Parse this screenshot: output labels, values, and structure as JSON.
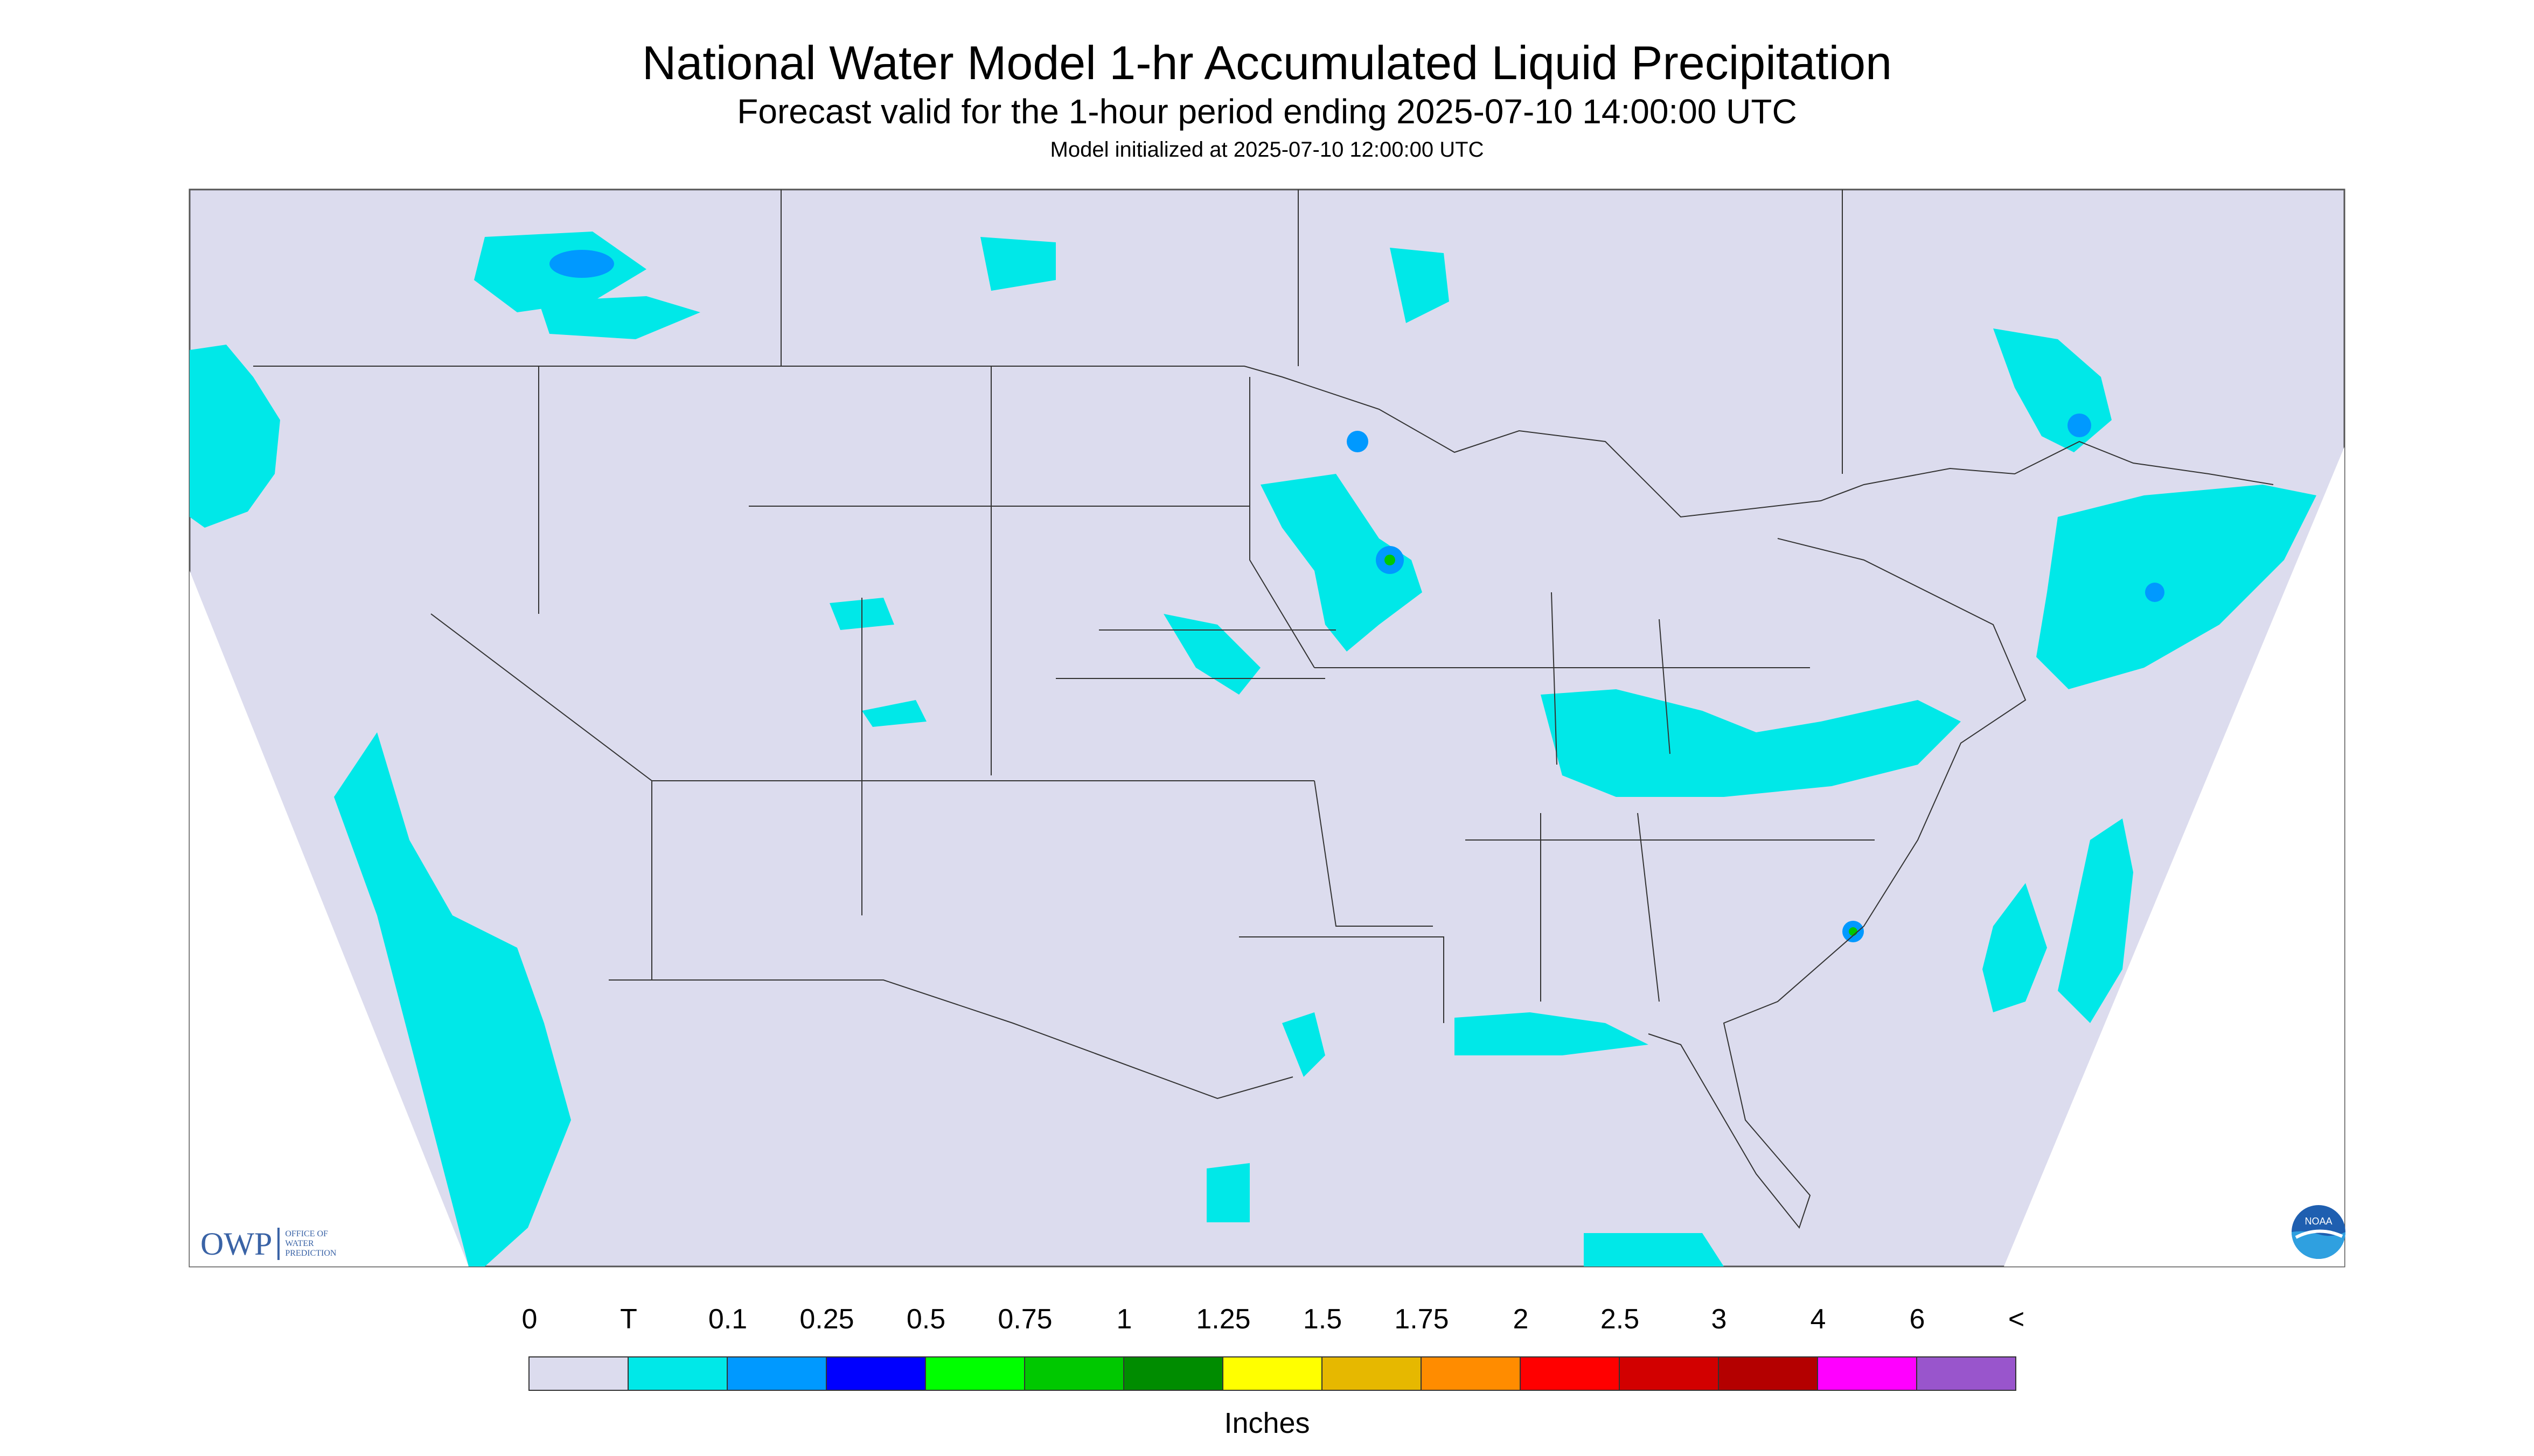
{
  "header": {
    "title": "National Water Model 1-hr Accumulated Liquid Precipitation",
    "subtitle": "Forecast valid for the 1-hour period ending 2025-07-10 14:00:00 UTC",
    "init": "Model initialized at 2025-07-10 12:00:00 UTC"
  },
  "map": {
    "background_color": "#dcdcee",
    "outside_color": "#ffffff",
    "boundary_color": "#333333"
  },
  "legend": {
    "tick_labels": [
      "0",
      "T",
      "0.1",
      "0.25",
      "0.5",
      "0.75",
      "1",
      "1.25",
      "1.5",
      "1.75",
      "2",
      "2.5",
      "3",
      "4",
      "6",
      "<"
    ],
    "colors": [
      "#dcdcee",
      "#00e8e8",
      "#0099ff",
      "#0000ff",
      "#00ff00",
      "#00c800",
      "#008c00",
      "#ffff00",
      "#e6b800",
      "#ff8c00",
      "#ff0000",
      "#d20000",
      "#b40000",
      "#ff00ff",
      "#9955cc"
    ],
    "units": "Inches"
  },
  "logos": {
    "owp_letters": "OWP",
    "owp_text": "OFFICE OF WATER PREDICTION",
    "noaa_text": "NOAA"
  }
}
